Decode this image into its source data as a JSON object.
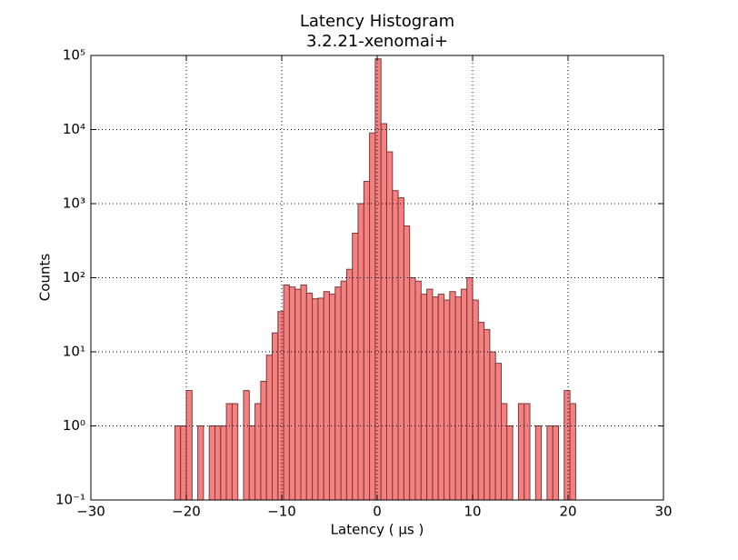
{
  "chart_data": {
    "type": "histogram",
    "title": "Latency Histogram",
    "subtitle": "3.2.21-xenomai+",
    "x_label": "Latency ( μs )",
    "y_label": "Counts",
    "bins": [
      -21.2,
      -20.6,
      -20.0,
      -19.4,
      -18.8,
      -18.2,
      -17.6,
      -17.0,
      -16.4,
      -15.8,
      -15.2,
      -14.6,
      -14.0,
      -13.4,
      -12.8,
      -12.2,
      -11.6,
      -11.0,
      -10.4,
      -9.8,
      -9.2,
      -8.6,
      -8.0,
      -7.4,
      -6.8,
      -6.2,
      -5.6,
      -5.0,
      -4.4,
      -3.8,
      -3.2,
      -2.6,
      -2.0,
      -1.4,
      -0.8,
      -0.2,
      0.4,
      1.0,
      1.6,
      2.2,
      2.8,
      3.4,
      4.0,
      4.6,
      5.2,
      5.8,
      6.4,
      7.0,
      7.6,
      8.2,
      8.8,
      9.4,
      10.0,
      10.6,
      11.2,
      11.8,
      12.4,
      13.0,
      13.6,
      14.2,
      14.8,
      15.4,
      16.0,
      16.6,
      17.2,
      17.8,
      18.4,
      19.0,
      19.6,
      20.2,
      20.8
    ],
    "values": [
      1,
      1,
      3,
      0,
      1,
      0,
      1,
      1,
      1,
      2,
      2,
      0,
      3,
      1,
      2,
      4,
      9,
      18,
      35,
      80,
      75,
      70,
      80,
      62,
      52,
      53,
      65,
      60,
      75,
      90,
      130,
      400,
      1000,
      2000,
      9000,
      90000,
      12000,
      5000,
      1500,
      1200,
      500,
      100,
      90,
      60,
      70,
      55,
      60,
      50,
      65,
      55,
      70,
      100,
      50,
      25,
      20,
      10,
      7,
      2,
      1,
      0,
      2,
      2,
      0,
      1,
      0,
      1,
      1,
      0,
      3,
      2
    ],
    "color": "#f67f7f",
    "edge_color": "#7a3a3a",
    "xlim": [
      -30,
      30
    ],
    "xticks": [
      {
        "value": -30,
        "label": "−30"
      },
      {
        "value": -20,
        "label": "−20"
      },
      {
        "value": -10,
        "label": "−10"
      },
      0,
      10,
      20,
      30
    ],
    "ylim": [
      0.1,
      100000
    ],
    "y_scale": "log",
    "yticks": [
      {
        "value": 0.1,
        "label": "10⁻¹"
      },
      {
        "value": 1,
        "label": "10⁰"
      },
      {
        "value": 10,
        "label": "10¹"
      },
      {
        "value": 100,
        "label": "10²"
      },
      {
        "value": 1000,
        "label": "10³"
      },
      {
        "value": 10000,
        "label": "10⁴"
      },
      {
        "value": 100000,
        "label": "10⁵"
      }
    ],
    "grid": true
  }
}
